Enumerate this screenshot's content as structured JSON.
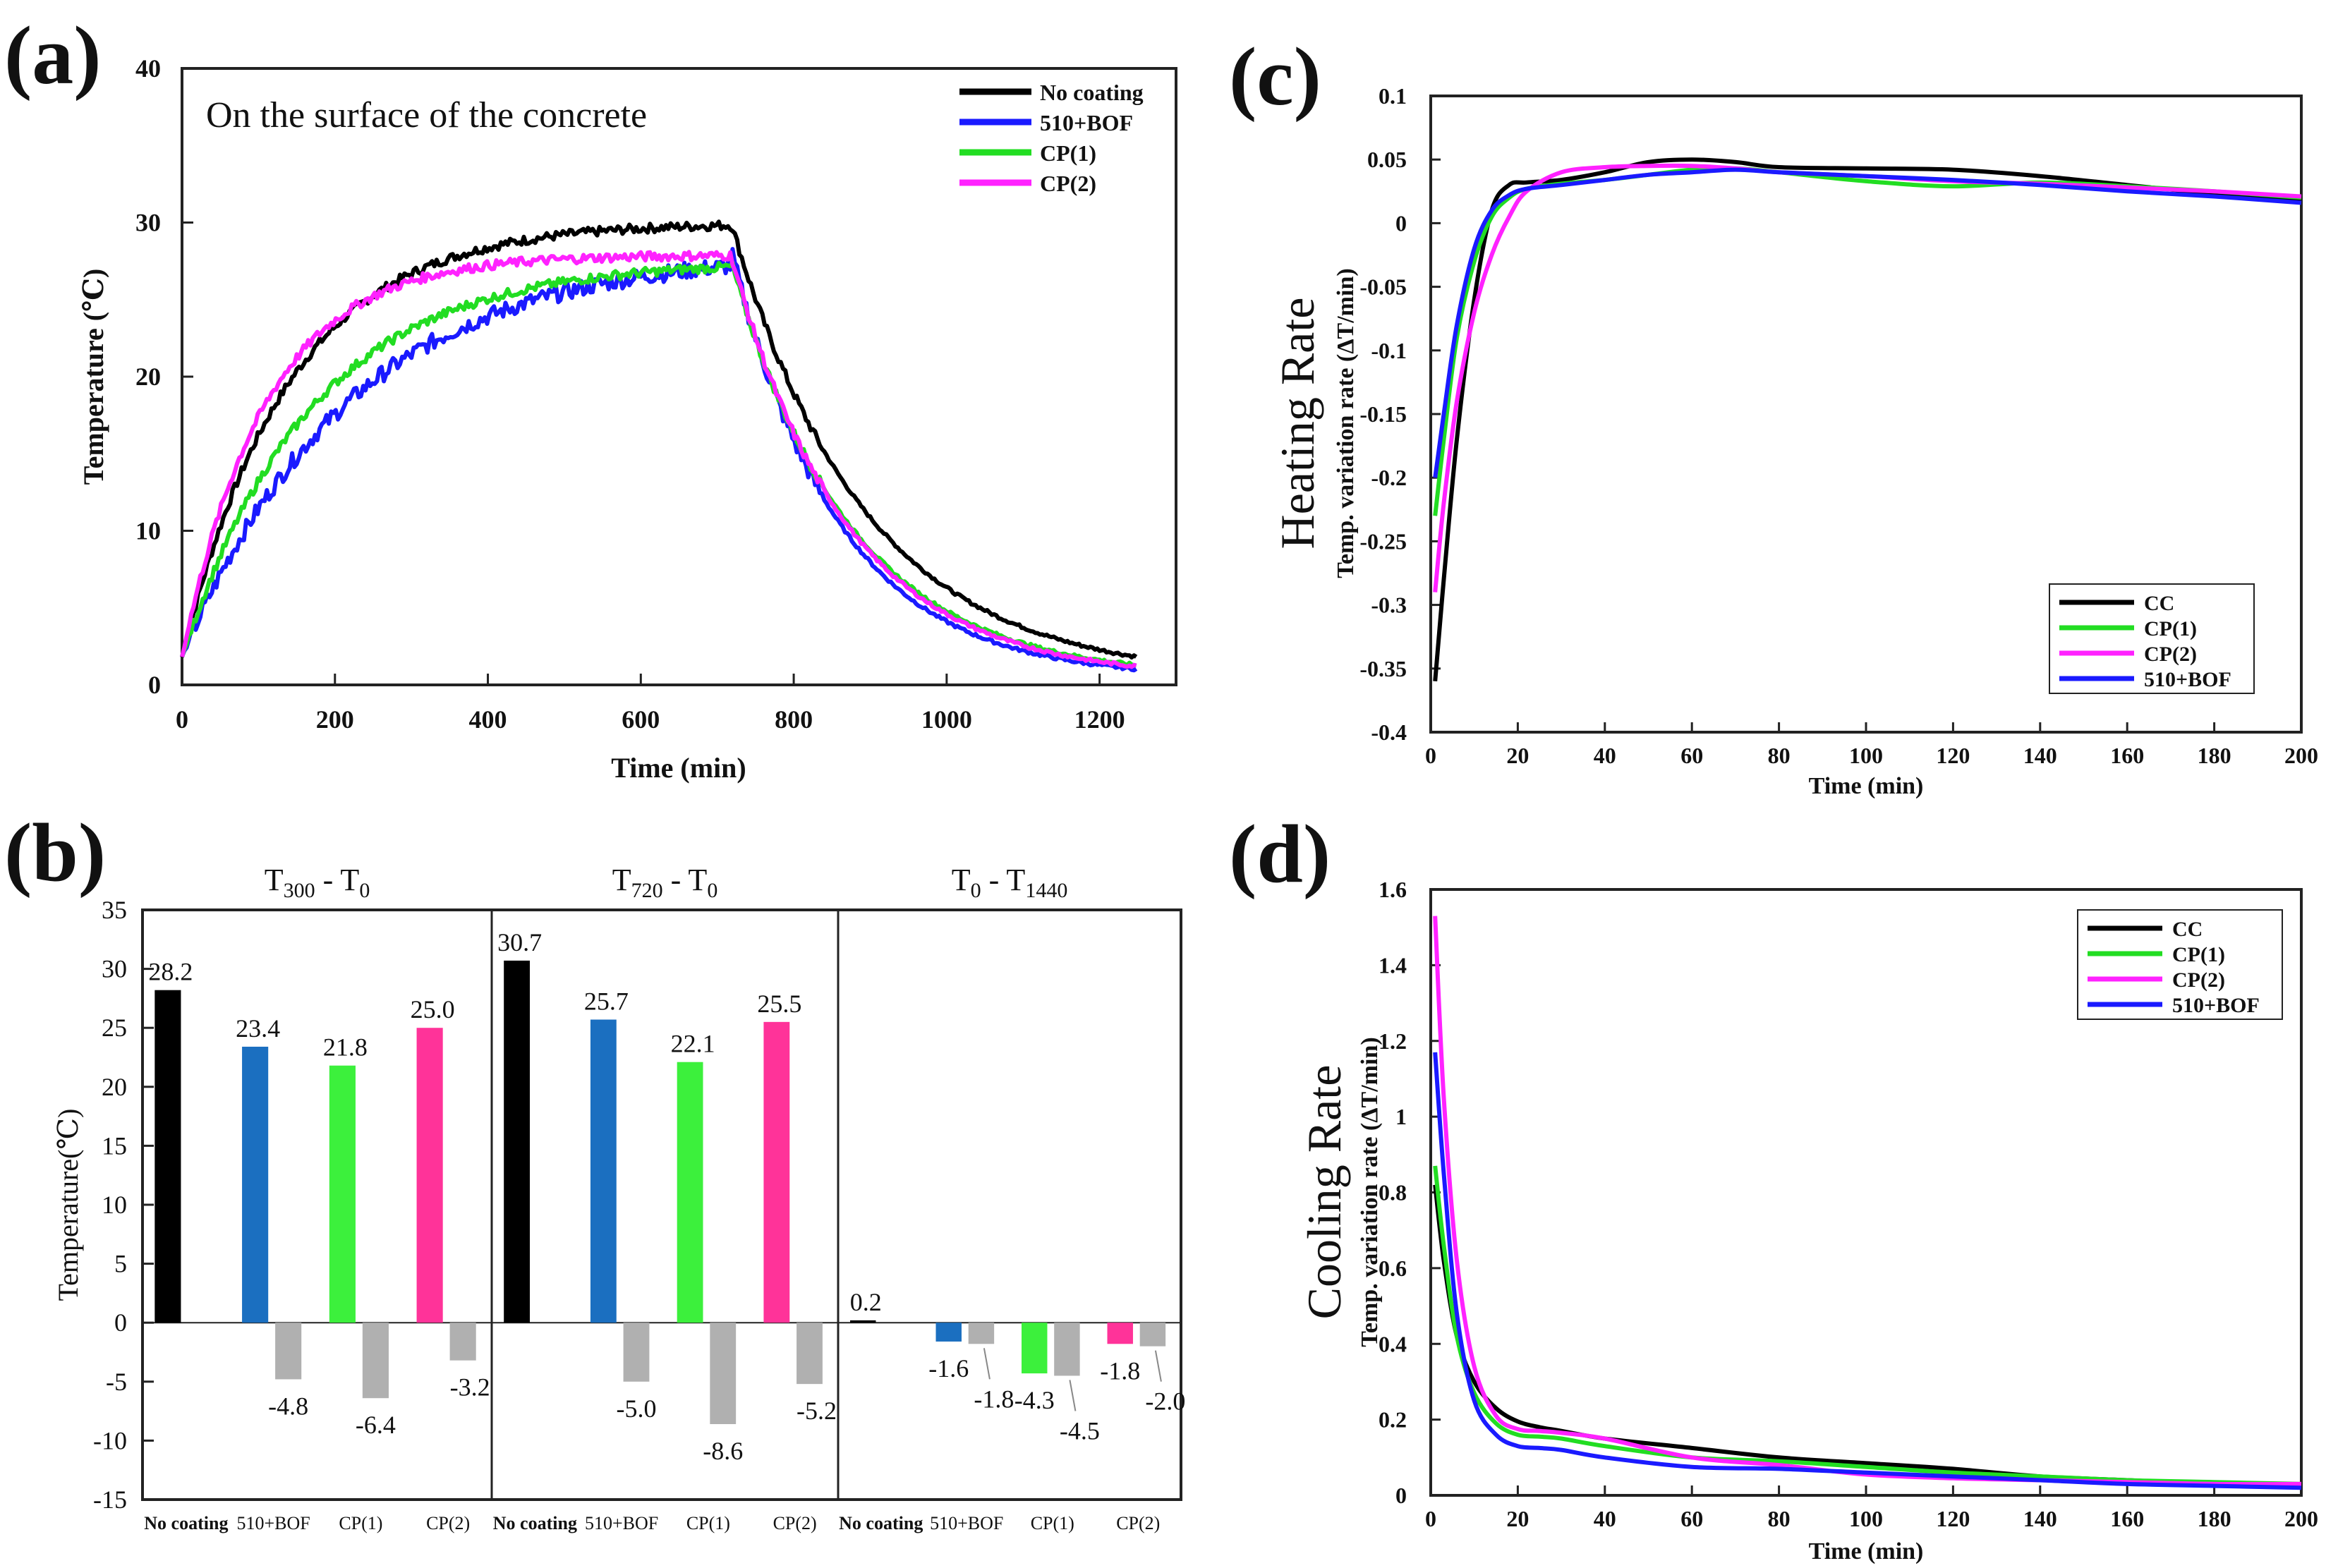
{
  "panels": {
    "a": {
      "label": "(a)"
    },
    "b": {
      "label": "(b)"
    },
    "c": {
      "label": "(c)"
    },
    "d": {
      "label": "(d)"
    }
  },
  "colors": {
    "black": "#000000",
    "blue": "#1a1aff",
    "green": "#22dd22",
    "magenta": "#ff22ff",
    "bar_black": "#000000",
    "bar_blue": "#1b6fc0",
    "bar_green": "#3cf03c",
    "bar_pink": "#ff3399",
    "bar_gray": "#b0b0b0"
  },
  "chart_data": [
    {
      "id": "a",
      "type": "line",
      "title": "",
      "annotation": "On the surface of the concrete",
      "xlabel": "Time (min)",
      "ylabel": "Temperature (℃)",
      "xlim": [
        0,
        1300
      ],
      "ylim": [
        0,
        40
      ],
      "xticks": [
        0,
        200,
        400,
        600,
        800,
        1000,
        1200
      ],
      "yticks": [
        0,
        10,
        20,
        30,
        40
      ],
      "series": [
        {
          "name": "No coating",
          "color": "#000000",
          "plateau": 30.0,
          "hold": 718,
          "end": 1250,
          "tau_heat": 140,
          "tau_cool": 175
        },
        {
          "name": "510+BOF",
          "color": "#1a1aff",
          "plateau": 28.2,
          "hold": 718,
          "end": 1250,
          "tau_heat": 220,
          "tau_cool": 140
        },
        {
          "name": "CP(1)",
          "color": "#22dd22",
          "plateau": 27.5,
          "hold": 718,
          "end": 1250,
          "tau_heat": 170,
          "tau_cool": 155
        },
        {
          "name": "CP(2)",
          "color": "#ff22ff",
          "plateau": 27.9,
          "hold": 718,
          "end": 1250,
          "tau_heat": 110,
          "tau_cool": 150
        }
      ]
    },
    {
      "id": "b",
      "type": "bar",
      "ylabel": "Temperature(℃)",
      "ylim": [
        -15,
        35
      ],
      "yticks": [
        -15,
        -10,
        -5,
        0,
        5,
        10,
        15,
        20,
        25,
        30,
        35
      ],
      "categories": [
        "No coating",
        "510+BOF",
        "CP(1)",
        "CP(2)"
      ],
      "groups": [
        {
          "title_main": "T",
          "sub1": "300",
          "mid": " - T",
          "sub2": "0",
          "values": [
            28.2,
            23.4,
            21.8,
            25.0
          ],
          "diff": [
            null,
            -4.8,
            -6.4,
            -3.2
          ]
        },
        {
          "title_main": "T",
          "sub1": "720",
          "mid": " - T",
          "sub2": "0",
          "values": [
            30.7,
            25.7,
            22.1,
            25.5
          ],
          "diff": [
            null,
            -5.0,
            -8.6,
            -5.2
          ]
        },
        {
          "title_main": "T",
          "sub1": "0",
          "mid": " - T",
          "sub2": "1440",
          "values": [
            0.2,
            -1.6,
            -4.3,
            -1.8
          ],
          "diff": [
            null,
            -1.8,
            -4.5,
            -2.0
          ]
        }
      ],
      "value_labels": [
        [
          "28.2",
          "23.4",
          "21.8",
          "25.0"
        ],
        [
          "30.7",
          "25.7",
          "22.1",
          "25.5"
        ],
        [
          "0.2",
          "-1.6",
          "-4.3",
          "-1.8"
        ]
      ],
      "diff_labels": [
        [
          "",
          "-4.8",
          "-6.4",
          "-3.2"
        ],
        [
          "",
          "-5.0",
          "-8.6",
          "-5.2"
        ],
        [
          "",
          "-1.8",
          "-4.5",
          "-2.0"
        ]
      ]
    },
    {
      "id": "c",
      "type": "line",
      "title": "Heating Rate",
      "xlabel": "Time (min)",
      "ylabel": "Temp. variation rate (ΔT/min)",
      "xlim": [
        0,
        200
      ],
      "ylim": [
        -0.4,
        0.1
      ],
      "xticks": [
        0,
        20,
        40,
        60,
        80,
        100,
        120,
        140,
        160,
        180,
        200
      ],
      "yticks": [
        -0.4,
        -0.35,
        -0.3,
        -0.25,
        -0.2,
        -0.15,
        -0.1,
        -0.05,
        0,
        0.05,
        0.1
      ],
      "ytick_labels": [
        "-0.4",
        "-0.35",
        "-0.3",
        "-0.25",
        "-0.2",
        "-0.15",
        "-0.1",
        "-0.05",
        "0",
        "0.05",
        "0.1"
      ],
      "series": [
        {
          "name": "CC",
          "color": "#000000",
          "x": [
            1,
            3,
            6,
            10,
            14,
            18,
            22,
            30,
            40,
            50,
            60,
            70,
            80,
            100,
            120,
            140,
            160,
            180,
            200
          ],
          "y": [
            -0.36,
            -0.28,
            -0.17,
            -0.06,
            0.01,
            0.03,
            0.032,
            0.034,
            0.04,
            0.048,
            0.05,
            0.048,
            0.044,
            0.043,
            0.042,
            0.037,
            0.03,
            0.023,
            0.017
          ]
        },
        {
          "name": "CP(1)",
          "color": "#22dd22",
          "x": [
            1,
            3,
            6,
            10,
            14,
            18,
            22,
            30,
            40,
            50,
            60,
            70,
            80,
            100,
            120,
            140,
            160,
            180,
            200
          ],
          "y": [
            -0.23,
            -0.17,
            -0.09,
            -0.03,
            0.005,
            0.02,
            0.027,
            0.031,
            0.034,
            0.038,
            0.042,
            0.043,
            0.04,
            0.033,
            0.029,
            0.032,
            0.029,
            0.025,
            0.02
          ]
        },
        {
          "name": "CP(2)",
          "color": "#ff22ff",
          "x": [
            1,
            3,
            6,
            10,
            14,
            18,
            22,
            30,
            40,
            50,
            60,
            70,
            80,
            100,
            120,
            140,
            160,
            180,
            200
          ],
          "y": [
            -0.29,
            -0.22,
            -0.14,
            -0.07,
            -0.025,
            0.005,
            0.025,
            0.04,
            0.044,
            0.045,
            0.045,
            0.043,
            0.04,
            0.037,
            0.033,
            0.031,
            0.028,
            0.025,
            0.021
          ]
        },
        {
          "name": "510+BOF",
          "color": "#1a1aff",
          "x": [
            1,
            3,
            6,
            10,
            14,
            18,
            22,
            30,
            40,
            50,
            60,
            70,
            80,
            100,
            120,
            140,
            160,
            180,
            200
          ],
          "y": [
            -0.2,
            -0.15,
            -0.08,
            -0.02,
            0.01,
            0.022,
            0.027,
            0.03,
            0.034,
            0.038,
            0.04,
            0.042,
            0.04,
            0.037,
            0.034,
            0.03,
            0.025,
            0.021,
            0.016
          ]
        }
      ]
    },
    {
      "id": "d",
      "type": "line",
      "title": "Cooling Rate",
      "xlabel": "Time (min)",
      "ylabel": "Temp. variation rate (ΔT/min)",
      "xlim": [
        0,
        200
      ],
      "ylim": [
        0,
        1.6
      ],
      "xticks": [
        0,
        20,
        40,
        60,
        80,
        100,
        120,
        140,
        160,
        180,
        200
      ],
      "yticks": [
        0,
        0.2,
        0.4,
        0.6,
        0.8,
        1.0,
        1.2,
        1.4,
        1.6
      ],
      "ytick_labels": [
        "0",
        "0.2",
        "0.4",
        "0.6",
        "0.8",
        "1",
        "1.2",
        "1.4",
        "1.6"
      ],
      "series": [
        {
          "name": "CC",
          "color": "#000000",
          "x": [
            1,
            3,
            6,
            10,
            15,
            20,
            25,
            30,
            40,
            60,
            80,
            100,
            120,
            140,
            160,
            180,
            200
          ],
          "y": [
            0.82,
            0.62,
            0.42,
            0.3,
            0.23,
            0.195,
            0.18,
            0.17,
            0.15,
            0.125,
            0.1,
            0.085,
            0.07,
            0.05,
            0.04,
            0.03,
            0.025
          ]
        },
        {
          "name": "CP(1)",
          "color": "#22dd22",
          "x": [
            1,
            3,
            6,
            10,
            15,
            20,
            25,
            30,
            40,
            60,
            80,
            100,
            120,
            140,
            160,
            180,
            200
          ],
          "y": [
            0.87,
            0.66,
            0.42,
            0.27,
            0.19,
            0.16,
            0.155,
            0.15,
            0.13,
            0.1,
            0.09,
            0.075,
            0.06,
            0.05,
            0.04,
            0.035,
            0.03
          ]
        },
        {
          "name": "CP(2)",
          "color": "#ff22ff",
          "x": [
            1,
            3,
            6,
            10,
            15,
            20,
            25,
            30,
            40,
            60,
            80,
            100,
            120,
            140,
            160,
            180,
            200
          ],
          "y": [
            1.53,
            1.05,
            0.62,
            0.34,
            0.21,
            0.175,
            0.17,
            0.165,
            0.15,
            0.1,
            0.08,
            0.055,
            0.045,
            0.04,
            0.035,
            0.03,
            0.03
          ]
        },
        {
          "name": "510+BOF",
          "color": "#1a1aff",
          "x": [
            1,
            3,
            6,
            10,
            15,
            20,
            25,
            30,
            40,
            60,
            80,
            100,
            120,
            140,
            160,
            180,
            200
          ],
          "y": [
            1.17,
            0.85,
            0.48,
            0.25,
            0.16,
            0.13,
            0.125,
            0.12,
            0.1,
            0.075,
            0.07,
            0.06,
            0.05,
            0.04,
            0.03,
            0.025,
            0.02
          ]
        }
      ]
    }
  ]
}
